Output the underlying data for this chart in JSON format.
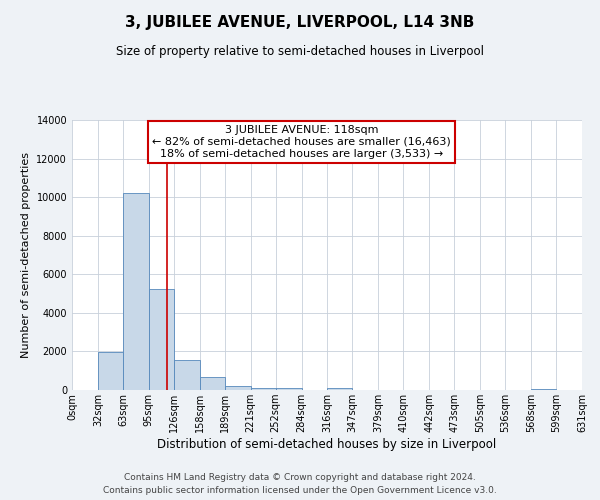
{
  "title": "3, JUBILEE AVENUE, LIVERPOOL, L14 3NB",
  "subtitle": "Size of property relative to semi-detached houses in Liverpool",
  "xlabel": "Distribution of semi-detached houses by size in Liverpool",
  "ylabel": "Number of semi-detached properties",
  "bin_edges": [
    0,
    32,
    63,
    95,
    126,
    158,
    189,
    221,
    252,
    284,
    316,
    347,
    379,
    410,
    442,
    473,
    505,
    536,
    568,
    599,
    631
  ],
  "bar_heights": [
    0,
    1950,
    10200,
    5250,
    1580,
    650,
    220,
    120,
    90,
    0,
    80,
    0,
    0,
    0,
    0,
    0,
    0,
    0,
    60,
    0
  ],
  "bar_color": "#c8d8e8",
  "bar_edge_color": "#5588bb",
  "property_line_x": 118,
  "property_line_color": "#cc0000",
  "annotation_line1": "3 JUBILEE AVENUE: 118sqm",
  "annotation_line2": "← 82% of semi-detached houses are smaller (16,463)",
  "annotation_line3": "18% of semi-detached houses are larger (3,533) →",
  "annotation_box_color": "#cc0000",
  "ylim": [
    0,
    14000
  ],
  "yticks": [
    0,
    2000,
    4000,
    6000,
    8000,
    10000,
    12000,
    14000
  ],
  "background_color": "#eef2f6",
  "plot_background_color": "#ffffff",
  "grid_color": "#c8d0da",
  "footer_text": "Contains HM Land Registry data © Crown copyright and database right 2024.\nContains public sector information licensed under the Open Government Licence v3.0.",
  "title_fontsize": 11,
  "subtitle_fontsize": 8.5,
  "xlabel_fontsize": 8.5,
  "ylabel_fontsize": 8,
  "tick_label_fontsize": 7,
  "annotation_fontsize": 8,
  "footer_fontsize": 6.5
}
